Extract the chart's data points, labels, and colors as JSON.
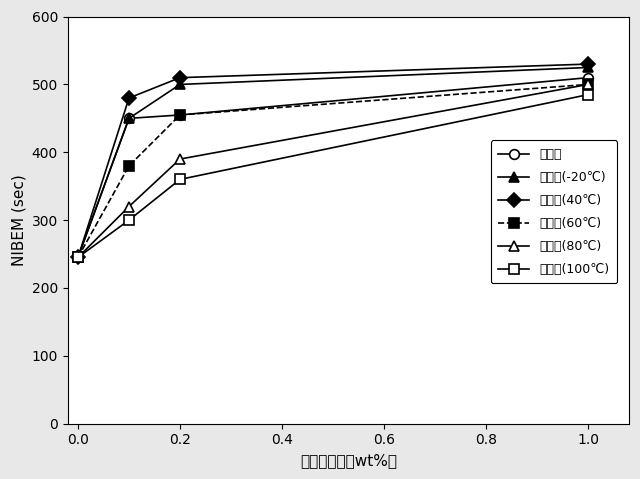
{
  "x": [
    0.0,
    0.1,
    0.2,
    1.0
  ],
  "series": [
    {
      "label": "生酵母",
      "values": [
        245,
        450,
        455,
        510
      ],
      "marker": "o",
      "markerfacecolor": "white",
      "markeredgecolor": "black",
      "linestyle": "-",
      "color": "black",
      "markersize": 7
    },
    {
      "label": "死酵母(-20℃)",
      "values": [
        245,
        450,
        500,
        525
      ],
      "marker": "^",
      "markerfacecolor": "black",
      "markeredgecolor": "black",
      "linestyle": "-",
      "color": "black",
      "markersize": 7
    },
    {
      "label": "死酵母(40℃)",
      "values": [
        245,
        480,
        510,
        530
      ],
      "marker": "D",
      "markerfacecolor": "black",
      "markeredgecolor": "black",
      "linestyle": "-",
      "color": "black",
      "markersize": 7
    },
    {
      "label": "死酵母(60℃)",
      "values": [
        245,
        380,
        455,
        500
      ],
      "marker": "s",
      "markerfacecolor": "black",
      "markeredgecolor": "black",
      "linestyle": "--",
      "color": "black",
      "markersize": 7
    },
    {
      "label": "死酵母(80℃)",
      "values": [
        245,
        320,
        390,
        500
      ],
      "marker": "^",
      "markerfacecolor": "white",
      "markeredgecolor": "black",
      "linestyle": "-",
      "color": "black",
      "markersize": 7
    },
    {
      "label": "死酵母(100℃)",
      "values": [
        245,
        300,
        360,
        485
      ],
      "marker": "s",
      "markerfacecolor": "white",
      "markeredgecolor": "black",
      "linestyle": "-",
      "color": "black",
      "markersize": 7
    }
  ],
  "xlabel": "酵母添加率（wt%）",
  "ylabel": "NIBEM (sec)",
  "xlim": [
    -0.02,
    1.08
  ],
  "ylim": [
    0,
    600
  ],
  "xticks": [
    0.0,
    0.2,
    0.4,
    0.6,
    0.8,
    1.0
  ],
  "yticks": [
    0,
    100,
    200,
    300,
    400,
    500,
    600
  ],
  "background_color": "#e8e8e8",
  "plot_bg_color": "#ffffff"
}
